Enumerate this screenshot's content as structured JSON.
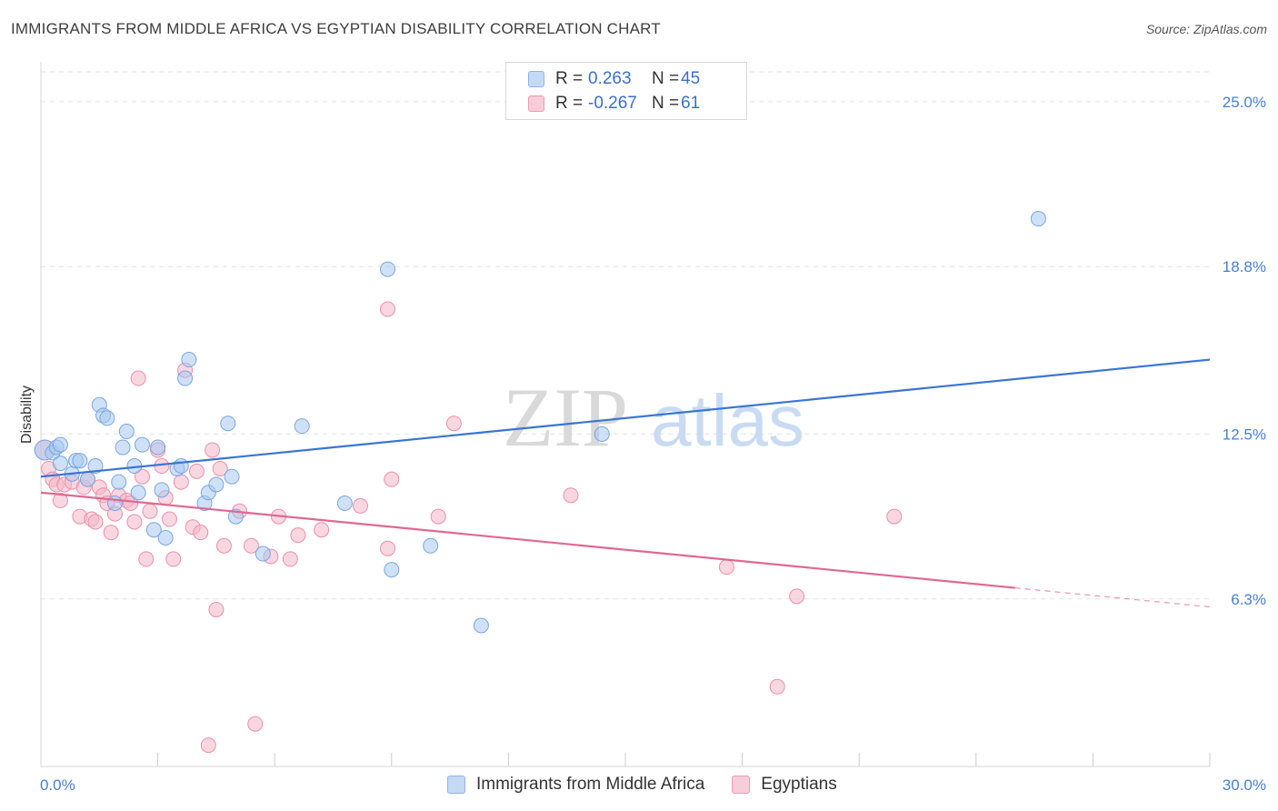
{
  "header": {
    "title": "IMMIGRANTS FROM MIDDLE AFRICA VS EGYPTIAN DISABILITY CORRELATION CHART",
    "source": "Source: ZipAtlas.com"
  },
  "watermark": {
    "zip": "ZIP",
    "atlas": "atlas"
  },
  "legend": {
    "rows": [
      {
        "r_label": "R =",
        "r_value": "0.263",
        "n_label": "N =",
        "n_value": "45",
        "color": "#a8c8f0"
      },
      {
        "r_label": "R =",
        "r_value": "-0.267",
        "n_label": "N =",
        "n_value": "61",
        "color": "#f4b6c8"
      }
    ]
  },
  "bottom_legend": {
    "items": [
      {
        "label": "Immigrants from Middle Africa",
        "color": "#a8c8f0"
      },
      {
        "label": "Egyptians",
        "color": "#f4b6c8"
      }
    ]
  },
  "chart_data": {
    "type": "scatter",
    "title": "IMMIGRANTS FROM MIDDLE AFRICA VS EGYPTIAN DISABILITY CORRELATION CHART",
    "xlabel": "",
    "ylabel": "Disability",
    "xlim": [
      0,
      30
    ],
    "ylim": [
      0,
      26.5
    ],
    "x_tick_labels": [
      "0.0%",
      "30.0%"
    ],
    "y_ticks": [
      6.3,
      12.5,
      18.8,
      25.0
    ],
    "y_tick_labels": [
      "6.3%",
      "12.5%",
      "18.8%",
      "25.0%"
    ],
    "grid": true,
    "series": [
      {
        "name": "Immigrants from Middle Africa",
        "color": "#a8c8f0",
        "stroke": "#7aa6e0",
        "trend_color": "#3a75d4",
        "trend": {
          "x0": 0,
          "y0": 10.9,
          "x1": 30,
          "y1": 15.3,
          "dash_from": null
        },
        "points": [
          [
            0.1,
            11.9
          ],
          [
            0.3,
            11.8
          ],
          [
            0.4,
            12.0
          ],
          [
            0.5,
            11.4
          ],
          [
            0.5,
            12.1
          ],
          [
            0.8,
            11.0
          ],
          [
            0.9,
            11.5
          ],
          [
            1.0,
            11.5
          ],
          [
            1.2,
            10.8
          ],
          [
            1.4,
            11.3
          ],
          [
            1.5,
            13.6
          ],
          [
            1.6,
            13.2
          ],
          [
            1.7,
            13.1
          ],
          [
            1.9,
            9.9
          ],
          [
            2.0,
            10.7
          ],
          [
            2.1,
            12.0
          ],
          [
            2.2,
            12.6
          ],
          [
            2.4,
            11.3
          ],
          [
            2.5,
            10.3
          ],
          [
            2.6,
            12.1
          ],
          [
            2.9,
            8.9
          ],
          [
            3.0,
            12.0
          ],
          [
            3.1,
            10.4
          ],
          [
            3.2,
            8.6
          ],
          [
            3.5,
            11.2
          ],
          [
            3.6,
            11.3
          ],
          [
            3.7,
            14.6
          ],
          [
            3.8,
            15.3
          ],
          [
            4.2,
            9.9
          ],
          [
            4.3,
            10.3
          ],
          [
            4.5,
            10.6
          ],
          [
            4.8,
            12.9
          ],
          [
            4.9,
            10.9
          ],
          [
            5.0,
            9.4
          ],
          [
            5.7,
            8.0
          ],
          [
            6.7,
            12.8
          ],
          [
            7.8,
            9.9
          ],
          [
            8.9,
            18.7
          ],
          [
            9.0,
            7.4
          ],
          [
            10.0,
            8.3
          ],
          [
            11.3,
            5.3
          ],
          [
            14.4,
            12.5
          ],
          [
            25.6,
            20.6
          ]
        ]
      },
      {
        "name": "Egyptians",
        "color": "#f4b6c8",
        "stroke": "#ea8fac",
        "trend_color": "#e06892",
        "trend": {
          "x0": 0,
          "y0": 10.3,
          "x1": 30,
          "y1": 6.0,
          "dash_from": 25.0
        },
        "points": [
          [
            0.1,
            11.9
          ],
          [
            0.2,
            11.2
          ],
          [
            0.3,
            10.8
          ],
          [
            0.4,
            10.6
          ],
          [
            0.5,
            10.0
          ],
          [
            0.6,
            10.6
          ],
          [
            0.8,
            10.7
          ],
          [
            1.0,
            9.4
          ],
          [
            1.1,
            10.5
          ],
          [
            1.2,
            10.8
          ],
          [
            1.3,
            9.3
          ],
          [
            1.4,
            9.2
          ],
          [
            1.5,
            10.5
          ],
          [
            1.6,
            10.2
          ],
          [
            1.7,
            9.9
          ],
          [
            1.8,
            8.8
          ],
          [
            1.9,
            9.5
          ],
          [
            2.0,
            10.2
          ],
          [
            2.2,
            10.0
          ],
          [
            2.3,
            9.9
          ],
          [
            2.4,
            9.2
          ],
          [
            2.5,
            14.6
          ],
          [
            2.6,
            10.9
          ],
          [
            2.7,
            7.8
          ],
          [
            2.8,
            9.6
          ],
          [
            3.0,
            11.9
          ],
          [
            3.1,
            11.3
          ],
          [
            3.2,
            10.1
          ],
          [
            3.3,
            9.3
          ],
          [
            3.4,
            7.8
          ],
          [
            3.6,
            10.7
          ],
          [
            3.7,
            14.9
          ],
          [
            3.9,
            9.0
          ],
          [
            4.0,
            11.1
          ],
          [
            4.1,
            8.8
          ],
          [
            4.4,
            11.9
          ],
          [
            4.5,
            5.9
          ],
          [
            4.6,
            11.2
          ],
          [
            4.7,
            8.3
          ],
          [
            5.1,
            9.6
          ],
          [
            5.4,
            8.3
          ],
          [
            5.5,
            1.6
          ],
          [
            5.9,
            7.9
          ],
          [
            6.1,
            9.4
          ],
          [
            6.4,
            7.8
          ],
          [
            6.6,
            8.7
          ],
          [
            7.2,
            8.9
          ],
          [
            8.2,
            9.8
          ],
          [
            8.9,
            17.2
          ],
          [
            8.9,
            8.2
          ],
          [
            9.0,
            10.8
          ],
          [
            10.2,
            9.4
          ],
          [
            10.6,
            12.9
          ],
          [
            13.6,
            10.2
          ],
          [
            17.6,
            7.5
          ],
          [
            18.9,
            3.0
          ],
          [
            19.4,
            6.4
          ],
          [
            21.9,
            9.4
          ],
          [
            4.3,
            0.8
          ]
        ]
      }
    ]
  }
}
